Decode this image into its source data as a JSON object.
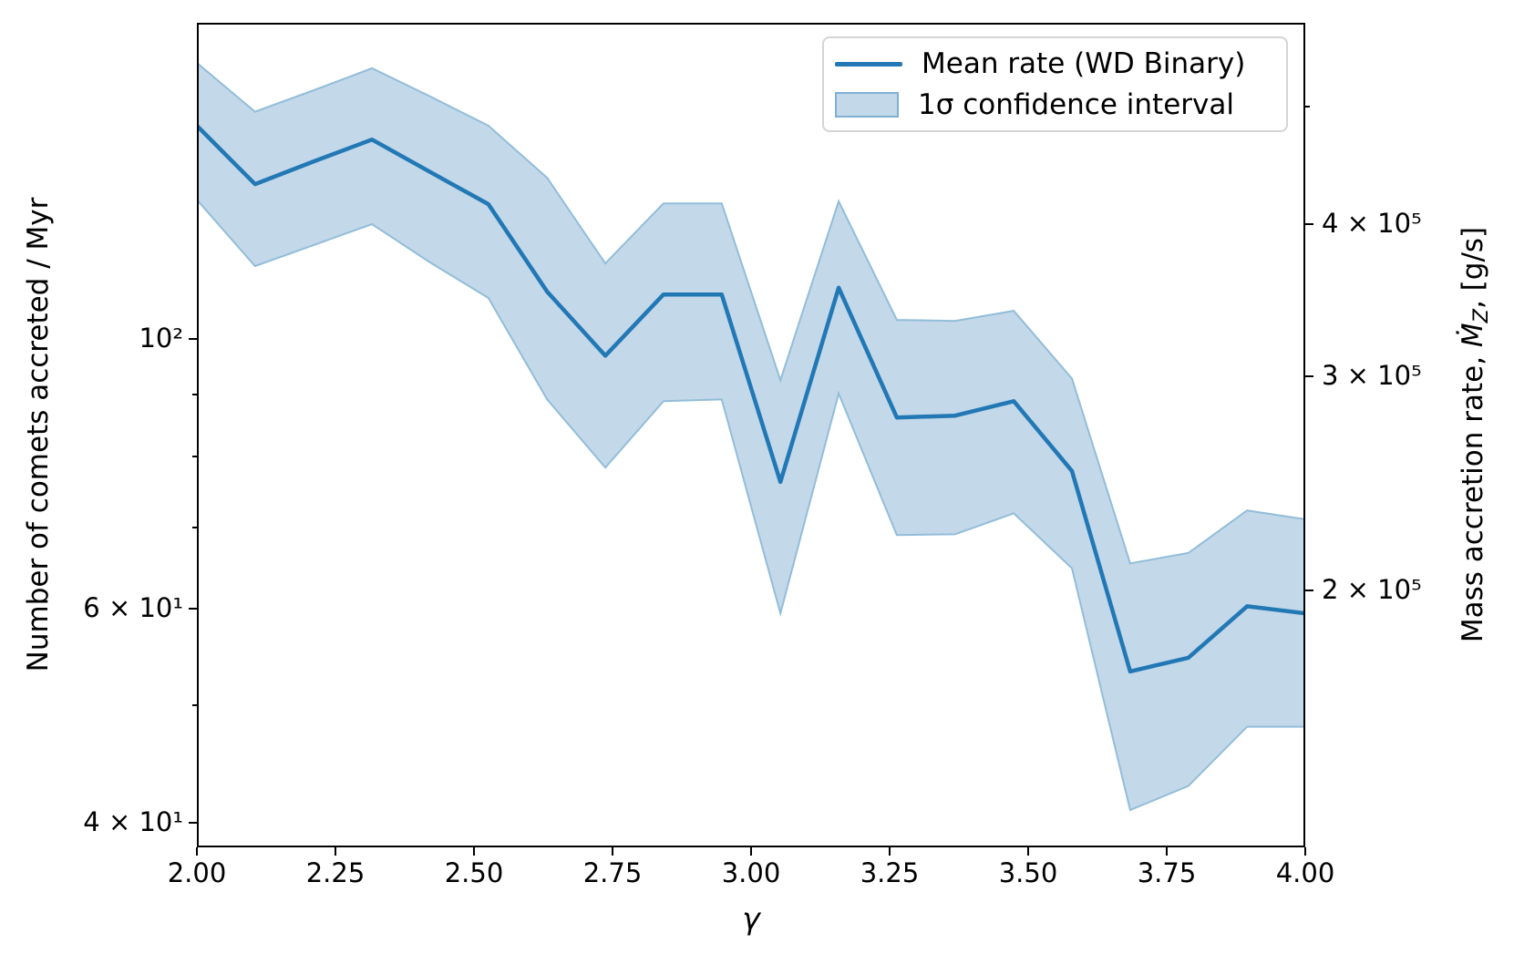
{
  "figure": {
    "xlabel": "γ",
    "ylabel_left": "Number of comets accreted / Myr",
    "ylabel_right": {
      "prefix": "Mass accretion rate, ",
      "mdot": "Ṁ",
      "sub": "Z",
      "suffix": ", [g/s]"
    },
    "legend": {
      "line_label": "Mean rate (WD Binary)",
      "band_label": "1σ confidence interval"
    },
    "colors": {
      "mean_line": "#2278b5",
      "band_fill": "#c3d8e9",
      "band_edge": "#92bdd9",
      "legend_patch_border": "#7fb0d4",
      "axes": "#000000"
    }
  },
  "chart_data": {
    "type": "line",
    "title": "",
    "xlabel": "γ",
    "ylabel_left": "Number of comets accreted / Myr",
    "ylabel_right": "Mass accretion rate, Ṁ_Z, [g/s]",
    "x_scale": "linear",
    "y_scale": "log",
    "grid": false,
    "legend_position": "upper right",
    "xlim": [
      2.0,
      4.0
    ],
    "ylim_left": [
      38.2,
      182.0
    ],
    "ylim_right": [
      122900,
      586000
    ],
    "x": [
      2.0,
      2.105,
      2.211,
      2.316,
      2.421,
      2.526,
      2.632,
      2.737,
      2.842,
      2.947,
      3.053,
      3.158,
      3.263,
      3.368,
      3.474,
      3.579,
      3.684,
      3.789,
      3.895,
      4.0
    ],
    "series": [
      {
        "name": "Mean rate (WD Binary)",
        "role": "mean",
        "values": [
          149.8,
          134.1,
          140.0,
          145.9,
          137.2,
          129.1,
          109.4,
          96.9,
          108.8,
          108.8,
          76.3,
          110.2,
          86.2,
          86.5,
          88.9,
          77.9,
          53.3,
          54.7,
          60.3,
          59.5
        ]
      },
      {
        "name": "1σ upper bound",
        "role": "band_upper",
        "values": [
          168.7,
          153.8,
          160.2,
          167.0,
          158.3,
          149.8,
          135.7,
          115.4,
          129.3,
          129.3,
          92.5,
          129.8,
          103.7,
          103.5,
          105.5,
          92.8,
          65.4,
          66.7,
          72.3,
          71.1
        ]
      },
      {
        "name": "1σ lower bound",
        "role": "band_lower",
        "values": [
          130.2,
          114.8,
          119.5,
          124.3,
          115.6,
          108.1,
          89.2,
          78.4,
          88.9,
          89.2,
          59.5,
          90.2,
          69.0,
          69.1,
          71.9,
          64.8,
          41.0,
          42.9,
          48.0,
          48.0
        ]
      }
    ],
    "x_ticks": [
      {
        "v": 2.0,
        "label": "2.00"
      },
      {
        "v": 2.25,
        "label": "2.25"
      },
      {
        "v": 2.5,
        "label": "2.50"
      },
      {
        "v": 2.75,
        "label": "2.75"
      },
      {
        "v": 3.0,
        "label": "3.00"
      },
      {
        "v": 3.25,
        "label": "3.25"
      },
      {
        "v": 3.5,
        "label": "3.50"
      },
      {
        "v": 3.75,
        "label": "3.75"
      },
      {
        "v": 4.0,
        "label": "4.00"
      }
    ],
    "y_ticks_left": [
      {
        "v": 100,
        "label": "10²"
      },
      {
        "v": 60,
        "label": "6 × 10¹"
      },
      {
        "v": 40,
        "label": "4 × 10¹"
      }
    ],
    "y_minor_ticks_left": [
      90,
      80,
      70,
      50
    ],
    "y_ticks_right": [
      {
        "v": 400000,
        "label": "4 × 10⁵"
      },
      {
        "v": 300000,
        "label": "3 × 10⁵"
      },
      {
        "v": 200000,
        "label": "2 × 10⁵"
      }
    ],
    "y_minor_ticks_right": [
      500000
    ]
  }
}
